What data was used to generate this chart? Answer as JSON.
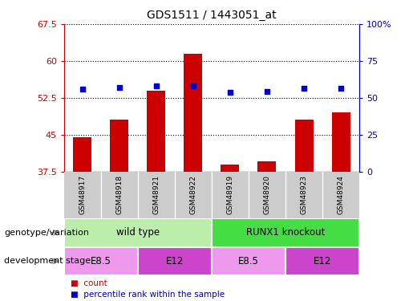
{
  "title": "GDS1511 / 1443051_at",
  "samples": [
    "GSM48917",
    "GSM48918",
    "GSM48921",
    "GSM48922",
    "GSM48919",
    "GSM48920",
    "GSM48923",
    "GSM48924"
  ],
  "count_values": [
    44.5,
    48.0,
    54.0,
    61.5,
    39.0,
    39.5,
    48.0,
    49.5
  ],
  "percentile_values": [
    56,
    57,
    58,
    58,
    54,
    54.5,
    56.5,
    56.5
  ],
  "ylim_left": [
    37.5,
    67.5
  ],
  "ylim_right": [
    0,
    100
  ],
  "yticks_left": [
    37.5,
    45,
    52.5,
    60,
    67.5
  ],
  "yticks_right": [
    0,
    25,
    50,
    75,
    100
  ],
  "ytick_labels_left": [
    "37.5",
    "45",
    "52.5",
    "60",
    "67.5"
  ],
  "ytick_labels_right": [
    "0",
    "25",
    "50",
    "75",
    "100%"
  ],
  "bar_color": "#cc0000",
  "dot_color": "#0000cc",
  "bar_width": 0.5,
  "genotype_groups": [
    {
      "label": "wild type",
      "start": 0,
      "end": 4,
      "color": "#bbeeaa"
    },
    {
      "label": "RUNX1 knockout",
      "start": 4,
      "end": 8,
      "color": "#44dd44"
    }
  ],
  "dev_stage_groups": [
    {
      "label": "E8.5",
      "start": 0,
      "end": 2,
      "color": "#ee99ee"
    },
    {
      "label": "E12",
      "start": 2,
      "end": 4,
      "color": "#cc44cc"
    },
    {
      "label": "E8.5",
      "start": 4,
      "end": 6,
      "color": "#ee99ee"
    },
    {
      "label": "E12",
      "start": 6,
      "end": 8,
      "color": "#cc44cc"
    }
  ],
  "legend_count_color": "#cc0000",
  "legend_pct_color": "#0000cc",
  "annotation_genotype": "genotype/variation",
  "annotation_devstage": "development stage",
  "left_axis_color": "#cc0000",
  "right_axis_color": "#0000cc",
  "tick_bg_color": "#cccccc",
  "sample_label_fontsize": 6.5,
  "row_label_fontsize": 8,
  "group_label_fontsize": 8.5
}
